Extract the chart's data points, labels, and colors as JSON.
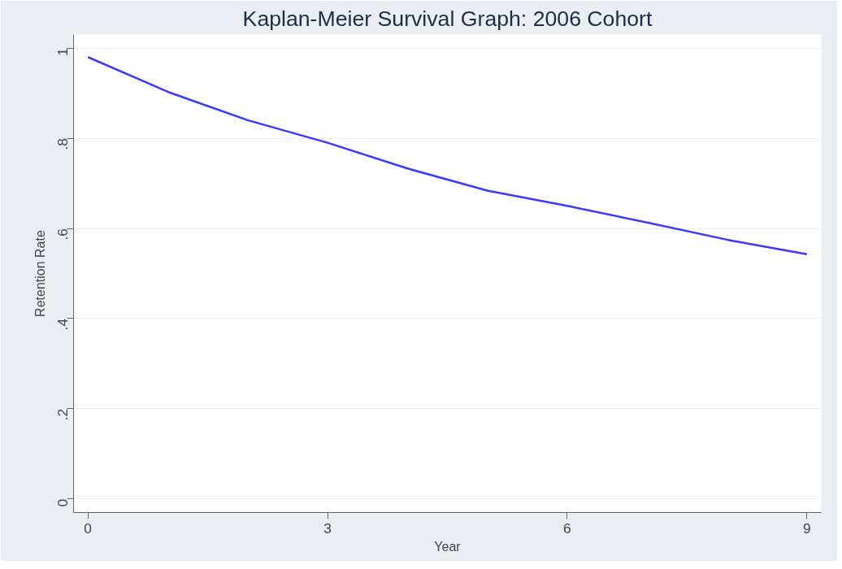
{
  "chart_data": {
    "type": "line",
    "title": "Kaplan-Meier Survival Graph: 2006 Cohort",
    "xlabel": "Year",
    "ylabel": "Retention Rate",
    "x": [
      0,
      1,
      2,
      3,
      4,
      5,
      6,
      7,
      8,
      9
    ],
    "series": [
      {
        "color": "#3a3aff",
        "values": [
          0.98,
          0.903,
          0.84,
          0.79,
          0.733,
          0.684,
          0.65,
          0.613,
          0.575,
          0.543
        ]
      }
    ],
    "xlim": [
      -0.18,
      9.18
    ],
    "ylim": [
      -0.03,
      1.03
    ],
    "xticks": [
      0,
      3,
      6,
      9
    ],
    "yticks": [
      {
        "value": 0,
        "label": "0"
      },
      {
        "value": 0.2,
        "label": ".2"
      },
      {
        "value": 0.4,
        "label": ".4"
      },
      {
        "value": 0.6,
        "label": ".6"
      },
      {
        "value": 0.8,
        "label": ".8"
      },
      {
        "value": 1,
        "label": "1"
      }
    ],
    "grid": "y",
    "marker": "none",
    "line_style": "solid"
  }
}
